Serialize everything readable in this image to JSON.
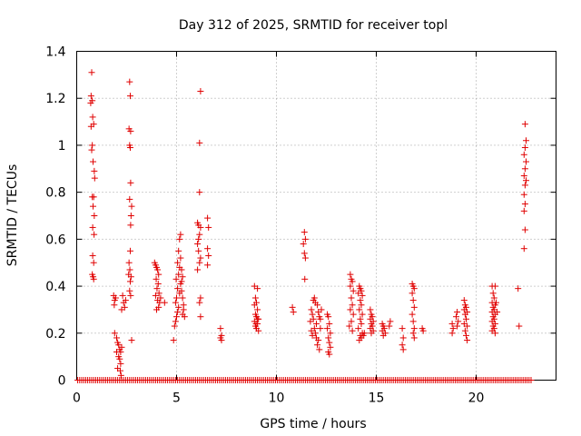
{
  "chart_data": {
    "type": "scatter",
    "title": "Day 312 of 2025, SRMTID for receiver topl",
    "xlabel": "GPS time / hours",
    "ylabel": "SRMTID / TECUs",
    "xlim": [
      0,
      24
    ],
    "ylim": [
      0,
      1.4
    ],
    "xticks": [
      0,
      5,
      10,
      15,
      20
    ],
    "yticks": [
      0,
      0.2,
      0.4,
      0.6,
      0.8,
      1,
      1.2,
      1.4
    ],
    "xtick_labels": [
      "0",
      "5",
      "10",
      "15",
      "20"
    ],
    "ytick_labels": [
      "0",
      "0.2",
      "0.4",
      "0.6",
      "0.8",
      "1",
      "1.2",
      "1.4"
    ],
    "grid": true,
    "marker": "+",
    "color": "#e00000",
    "series": [
      {
        "name": "SRMTID",
        "points": [
          [
            0.75,
            1.31
          ],
          [
            0.72,
            1.21
          ],
          [
            0.78,
            1.19
          ],
          [
            0.7,
            1.18
          ],
          [
            0.8,
            1.12
          ],
          [
            0.85,
            1.09
          ],
          [
            0.72,
            1.08
          ],
          [
            0.78,
            1.0
          ],
          [
            0.75,
            0.98
          ],
          [
            0.82,
            0.93
          ],
          [
            0.88,
            0.89
          ],
          [
            0.9,
            0.86
          ],
          [
            0.78,
            0.78
          ],
          [
            0.85,
            0.78
          ],
          [
            0.82,
            0.74
          ],
          [
            0.88,
            0.7
          ],
          [
            0.8,
            0.65
          ],
          [
            0.87,
            0.62
          ],
          [
            0.8,
            0.53
          ],
          [
            0.85,
            0.5
          ],
          [
            0.78,
            0.45
          ],
          [
            0.85,
            0.43
          ],
          [
            0.82,
            0.44
          ],
          [
            1.85,
            0.36
          ],
          [
            1.9,
            0.34
          ],
          [
            1.88,
            0.32
          ],
          [
            1.95,
            0.35
          ],
          [
            2.3,
            0.36
          ],
          [
            2.35,
            0.33
          ],
          [
            2.4,
            0.31
          ],
          [
            2.25,
            0.3
          ],
          [
            2.45,
            0.34
          ],
          [
            1.9,
            0.2
          ],
          [
            2.0,
            0.18
          ],
          [
            2.05,
            0.16
          ],
          [
            2.1,
            0.15
          ],
          [
            2.15,
            0.13
          ],
          [
            2.2,
            0.12
          ],
          [
            2.25,
            0.14
          ],
          [
            2.1,
            0.1
          ],
          [
            2.15,
            0.09
          ],
          [
            2.2,
            0.07
          ],
          [
            2.05,
            0.05
          ],
          [
            2.18,
            0.04
          ],
          [
            2.22,
            0.02
          ],
          [
            2.0,
            0.12
          ],
          [
            2.65,
            1.27
          ],
          [
            2.68,
            1.21
          ],
          [
            2.62,
            1.07
          ],
          [
            2.7,
            1.06
          ],
          [
            2.65,
            1.0
          ],
          [
            2.68,
            0.99
          ],
          [
            2.7,
            0.84
          ],
          [
            2.65,
            0.77
          ],
          [
            2.75,
            0.74
          ],
          [
            2.72,
            0.7
          ],
          [
            2.7,
            0.66
          ],
          [
            2.68,
            0.55
          ],
          [
            2.62,
            0.5
          ],
          [
            2.66,
            0.47
          ],
          [
            2.6,
            0.45
          ],
          [
            2.72,
            0.44
          ],
          [
            2.68,
            0.42
          ],
          [
            2.65,
            0.38
          ],
          [
            2.7,
            0.36
          ],
          [
            2.75,
            0.17
          ],
          [
            3.9,
            0.5
          ],
          [
            3.95,
            0.49
          ],
          [
            4.0,
            0.48
          ],
          [
            4.05,
            0.47
          ],
          [
            4.1,
            0.45
          ],
          [
            3.98,
            0.43
          ],
          [
            4.08,
            0.41
          ],
          [
            4.02,
            0.39
          ],
          [
            4.12,
            0.37
          ],
          [
            3.95,
            0.36
          ],
          [
            4.05,
            0.34
          ],
          [
            4.15,
            0.33
          ],
          [
            4.2,
            0.35
          ],
          [
            4.1,
            0.31
          ],
          [
            4.0,
            0.3
          ],
          [
            4.4,
            0.33
          ],
          [
            4.9,
            0.23
          ],
          [
            4.95,
            0.25
          ],
          [
            5.0,
            0.27
          ],
          [
            4.85,
            0.17
          ],
          [
            5.05,
            0.29
          ],
          [
            5.1,
            0.31
          ],
          [
            4.95,
            0.33
          ],
          [
            5.0,
            0.35
          ],
          [
            5.15,
            0.37
          ],
          [
            5.05,
            0.39
          ],
          [
            5.2,
            0.41
          ],
          [
            4.98,
            0.43
          ],
          [
            5.1,
            0.45
          ],
          [
            5.25,
            0.47
          ],
          [
            5.15,
            0.48
          ],
          [
            5.05,
            0.5
          ],
          [
            5.2,
            0.52
          ],
          [
            5.1,
            0.55
          ],
          [
            5.15,
            0.6
          ],
          [
            5.2,
            0.62
          ],
          [
            5.25,
            0.38
          ],
          [
            5.3,
            0.35
          ],
          [
            5.35,
            0.3
          ],
          [
            5.3,
            0.28
          ],
          [
            5.35,
            0.32
          ],
          [
            5.4,
            0.27
          ],
          [
            5.25,
            0.42
          ],
          [
            5.3,
            0.44
          ],
          [
            6.2,
            1.23
          ],
          [
            6.15,
            1.01
          ],
          [
            6.15,
            0.8
          ],
          [
            6.05,
            0.67
          ],
          [
            6.1,
            0.66
          ],
          [
            6.2,
            0.65
          ],
          [
            6.15,
            0.62
          ],
          [
            6.05,
            0.58
          ],
          [
            6.1,
            0.55
          ],
          [
            6.2,
            0.52
          ],
          [
            6.15,
            0.5
          ],
          [
            6.05,
            0.47
          ],
          [
            6.2,
            0.35
          ],
          [
            6.15,
            0.33
          ],
          [
            6.2,
            0.27
          ],
          [
            6.55,
            0.69
          ],
          [
            6.6,
            0.65
          ],
          [
            6.55,
            0.56
          ],
          [
            6.6,
            0.53
          ],
          [
            6.55,
            0.49
          ],
          [
            6.1,
            0.6
          ],
          [
            7.2,
            0.22
          ],
          [
            7.25,
            0.19
          ],
          [
            7.2,
            0.18
          ],
          [
            7.25,
            0.17
          ],
          [
            8.9,
            0.4
          ],
          [
            9.05,
            0.39
          ],
          [
            8.95,
            0.35
          ],
          [
            9.0,
            0.33
          ],
          [
            8.9,
            0.32
          ],
          [
            9.05,
            0.3
          ],
          [
            8.95,
            0.28
          ],
          [
            9.0,
            0.27
          ],
          [
            9.1,
            0.26
          ],
          [
            8.9,
            0.25
          ],
          [
            9.05,
            0.24
          ],
          [
            8.95,
            0.23
          ],
          [
            9.0,
            0.22
          ],
          [
            9.1,
            0.21
          ],
          [
            9.05,
            0.26
          ],
          [
            8.98,
            0.24
          ],
          [
            10.8,
            0.31
          ],
          [
            10.85,
            0.29
          ],
          [
            11.4,
            0.63
          ],
          [
            11.45,
            0.6
          ],
          [
            11.35,
            0.58
          ],
          [
            11.4,
            0.54
          ],
          [
            11.45,
            0.52
          ],
          [
            11.42,
            0.43
          ],
          [
            11.75,
            0.3
          ],
          [
            11.8,
            0.28
          ],
          [
            11.85,
            0.26
          ],
          [
            11.7,
            0.25
          ],
          [
            11.9,
            0.22
          ],
          [
            11.75,
            0.21
          ],
          [
            11.95,
            0.2
          ],
          [
            11.8,
            0.19
          ],
          [
            12.0,
            0.18
          ],
          [
            11.85,
            0.34
          ],
          [
            11.95,
            0.33
          ],
          [
            12.05,
            0.32
          ],
          [
            12.1,
            0.29
          ],
          [
            12.15,
            0.27
          ],
          [
            12.0,
            0.24
          ],
          [
            12.2,
            0.22
          ],
          [
            12.1,
            0.17
          ],
          [
            12.05,
            0.15
          ],
          [
            12.15,
            0.13
          ],
          [
            12.2,
            0.26
          ],
          [
            12.25,
            0.3
          ],
          [
            11.9,
            0.35
          ],
          [
            12.55,
            0.28
          ],
          [
            12.6,
            0.27
          ],
          [
            12.65,
            0.24
          ],
          [
            12.55,
            0.22
          ],
          [
            12.7,
            0.2
          ],
          [
            12.6,
            0.18
          ],
          [
            12.65,
            0.16
          ],
          [
            12.7,
            0.14
          ],
          [
            12.6,
            0.12
          ],
          [
            12.65,
            0.11
          ],
          [
            13.7,
            0.45
          ],
          [
            13.75,
            0.43
          ],
          [
            13.8,
            0.42
          ],
          [
            13.7,
            0.4
          ],
          [
            13.85,
            0.38
          ],
          [
            13.75,
            0.35
          ],
          [
            13.8,
            0.32
          ],
          [
            13.7,
            0.3
          ],
          [
            13.85,
            0.28
          ],
          [
            13.75,
            0.25
          ],
          [
            13.65,
            0.23
          ],
          [
            13.8,
            0.21
          ],
          [
            14.15,
            0.4
          ],
          [
            14.2,
            0.39
          ],
          [
            14.25,
            0.38
          ],
          [
            14.1,
            0.37
          ],
          [
            14.3,
            0.36
          ],
          [
            14.2,
            0.34
          ],
          [
            14.25,
            0.32
          ],
          [
            14.15,
            0.3
          ],
          [
            14.3,
            0.28
          ],
          [
            14.2,
            0.26
          ],
          [
            14.25,
            0.24
          ],
          [
            14.1,
            0.22
          ],
          [
            14.3,
            0.2
          ],
          [
            14.2,
            0.19
          ],
          [
            14.25,
            0.18
          ],
          [
            14.15,
            0.17
          ],
          [
            14.35,
            0.19
          ],
          [
            14.4,
            0.2
          ],
          [
            14.7,
            0.3
          ],
          [
            14.75,
            0.28
          ],
          [
            14.8,
            0.27
          ],
          [
            14.7,
            0.26
          ],
          [
            14.85,
            0.25
          ],
          [
            14.75,
            0.24
          ],
          [
            14.8,
            0.23
          ],
          [
            14.7,
            0.22
          ],
          [
            14.85,
            0.21
          ],
          [
            14.75,
            0.2
          ],
          [
            15.3,
            0.24
          ],
          [
            15.35,
            0.23
          ],
          [
            15.4,
            0.22
          ],
          [
            15.3,
            0.21
          ],
          [
            15.45,
            0.2
          ],
          [
            15.35,
            0.19
          ],
          [
            15.7,
            0.25
          ],
          [
            15.65,
            0.23
          ],
          [
            16.3,
            0.22
          ],
          [
            16.35,
            0.18
          ],
          [
            16.3,
            0.15
          ],
          [
            16.35,
            0.13
          ],
          [
            16.8,
            0.41
          ],
          [
            16.85,
            0.4
          ],
          [
            16.9,
            0.39
          ],
          [
            16.8,
            0.37
          ],
          [
            16.85,
            0.34
          ],
          [
            16.9,
            0.31
          ],
          [
            16.8,
            0.28
          ],
          [
            16.85,
            0.25
          ],
          [
            16.9,
            0.22
          ],
          [
            16.85,
            0.2
          ],
          [
            16.9,
            0.18
          ],
          [
            17.3,
            0.22
          ],
          [
            17.35,
            0.21
          ],
          [
            18.8,
            0.24
          ],
          [
            18.85,
            0.22
          ],
          [
            18.8,
            0.2
          ],
          [
            19.0,
            0.27
          ],
          [
            19.05,
            0.29
          ],
          [
            19.1,
            0.25
          ],
          [
            19.05,
            0.23
          ],
          [
            19.4,
            0.34
          ],
          [
            19.45,
            0.32
          ],
          [
            19.5,
            0.31
          ],
          [
            19.4,
            0.3
          ],
          [
            19.55,
            0.29
          ],
          [
            19.45,
            0.28
          ],
          [
            19.5,
            0.26
          ],
          [
            19.4,
            0.24
          ],
          [
            19.55,
            0.23
          ],
          [
            19.45,
            0.21
          ],
          [
            19.5,
            0.19
          ],
          [
            19.55,
            0.17
          ],
          [
            20.8,
            0.4
          ],
          [
            20.95,
            0.4
          ],
          [
            20.85,
            0.37
          ],
          [
            20.9,
            0.35
          ],
          [
            20.8,
            0.33
          ],
          [
            20.95,
            0.32
          ],
          [
            20.85,
            0.31
          ],
          [
            20.9,
            0.3
          ],
          [
            20.8,
            0.29
          ],
          [
            20.95,
            0.28
          ],
          [
            20.85,
            0.27
          ],
          [
            20.9,
            0.26
          ],
          [
            20.8,
            0.25
          ],
          [
            20.95,
            0.24
          ],
          [
            20.85,
            0.23
          ],
          [
            20.9,
            0.22
          ],
          [
            20.8,
            0.21
          ],
          [
            20.95,
            0.2
          ],
          [
            21.0,
            0.33
          ],
          [
            21.05,
            0.29
          ],
          [
            22.45,
            1.09
          ],
          [
            22.5,
            1.02
          ],
          [
            22.45,
            0.99
          ],
          [
            22.4,
            0.96
          ],
          [
            22.5,
            0.93
          ],
          [
            22.45,
            0.9
          ],
          [
            22.4,
            0.87
          ],
          [
            22.5,
            0.85
          ],
          [
            22.45,
            0.83
          ],
          [
            22.4,
            0.79
          ],
          [
            22.45,
            0.75
          ],
          [
            22.4,
            0.72
          ],
          [
            22.45,
            0.64
          ],
          [
            22.4,
            0.56
          ],
          [
            22.1,
            0.39
          ],
          [
            22.15,
            0.23
          ]
        ]
      }
    ],
    "baseline_segments": [
      {
        "y": 0,
        "x_start": 0.05,
        "x_end": 22.8
      }
    ]
  }
}
